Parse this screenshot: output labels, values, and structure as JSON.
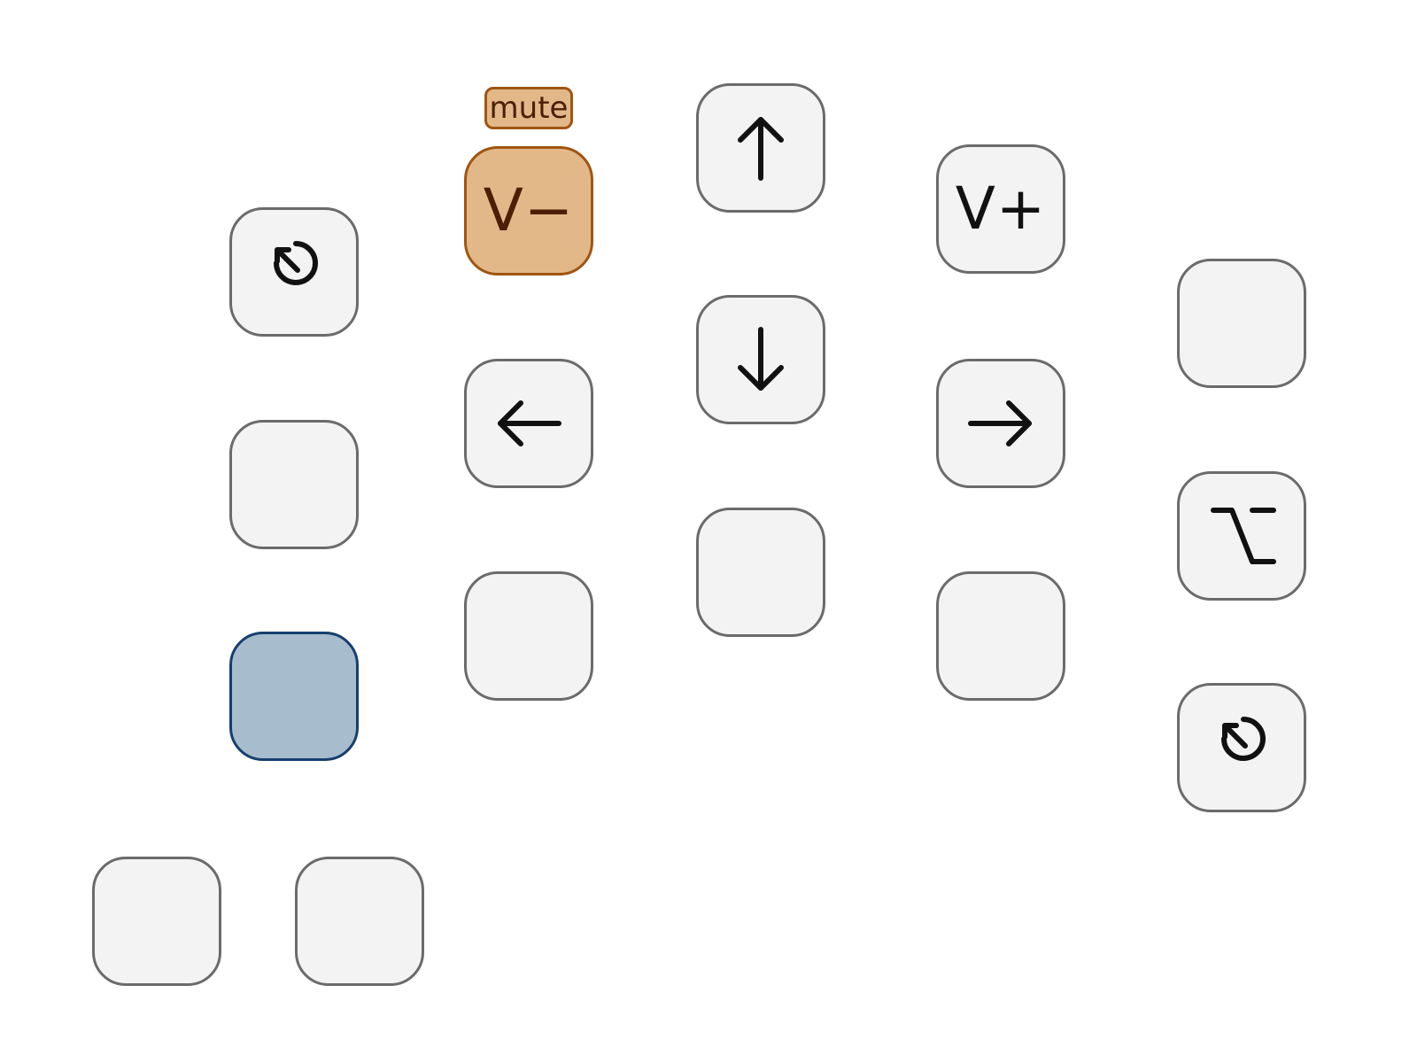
{
  "keypad": {
    "tooltip": "mute",
    "keys": {
      "volume_down": {
        "label": "V−",
        "state": "highlighted",
        "highlight_color": "#e2b888"
      },
      "volume_up": {
        "label": "V+"
      },
      "arrow_up": {
        "icon": "arrow-up-icon"
      },
      "arrow_down": {
        "icon": "arrow-down-icon"
      },
      "arrow_left": {
        "icon": "arrow-left-icon"
      },
      "arrow_right": {
        "icon": "arrow-right-icon"
      },
      "option": {
        "icon": "option-icon",
        "glyph": "⌥"
      },
      "reset_left": {
        "icon": "reset-icon"
      },
      "reset_right": {
        "icon": "reset-icon"
      },
      "selected_key": {
        "state": "selected",
        "highlight_color": "#a7bdcd"
      }
    },
    "blank_key_count": 8
  },
  "colors": {
    "key_fill": "#f3f3f3",
    "key_border": "#6b6b6b",
    "orange_fill": "#e2b888",
    "orange_border": "#a05512",
    "blue_fill": "#a7bdcd",
    "blue_border": "#163f6e"
  }
}
